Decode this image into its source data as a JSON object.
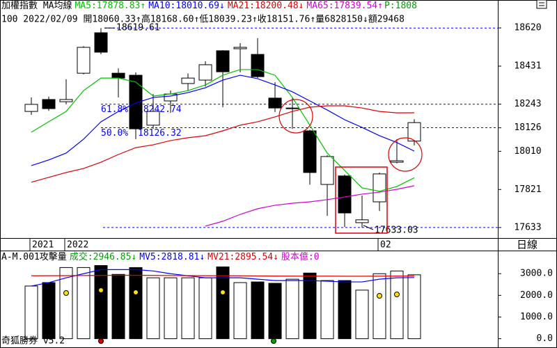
{
  "chart_data": [
    {
      "type": "candlestick",
      "title": "加權指數 MA均線",
      "info": "100 2022/02/09 開18060.33↑高18168.60↑低18039.23↑收18151.76↑量6828150↓額29468",
      "extra_label": "P:1808",
      "period": "日線",
      "categories": [
        "2021",
        null,
        "2022",
        null,
        null,
        null,
        null,
        null,
        null,
        null,
        null,
        null,
        null,
        null,
        null,
        null,
        null,
        null,
        null,
        null,
        "02",
        null,
        null
      ],
      "open": [
        18207,
        18266,
        18255,
        18396,
        18596,
        18396,
        18386,
        18139,
        18259,
        18345,
        18362,
        18507,
        18517,
        18489,
        18273,
        18221,
        18111,
        17846,
        17888,
        17657,
        17760,
        17956,
        18060.33
      ],
      "high": [
        18276,
        18280,
        18366,
        18530,
        18619.61,
        18420,
        18400,
        18293,
        18310,
        18395,
        18455,
        18510,
        18545,
        18569,
        18352,
        18276,
        18116,
        17990,
        17895,
        17791,
        17905,
        18070,
        18168.6
      ],
      "low": [
        18190,
        18210,
        18242,
        18390,
        18490,
        18276,
        18070,
        18121,
        18200,
        18310,
        18330,
        18228,
        18400,
        18372,
        18204,
        18121,
        17845,
        17691,
        17636,
        17633.03,
        17715,
        17950,
        18039.23
      ],
      "close": [
        18242,
        18221,
        18266,
        18524,
        18500,
        18372,
        18121,
        18207,
        18293,
        18372,
        18438,
        18403,
        18524,
        18379,
        18224,
        18224,
        17905,
        17984,
        17705,
        17671,
        17898,
        17963,
        18151.76
      ],
      "up_color": "#ffffff",
      "down_color": "#000000",
      "ylim": [
        17581,
        18758
      ],
      "yticks": [
        18620,
        18431,
        18243,
        18126,
        18010,
        17821,
        17633
      ],
      "series": [
        {
          "name": "MA5:17878.83↑",
          "color": "#00c000",
          "values": [
            18104,
            18156,
            18207,
            18310,
            18372,
            18372,
            18352,
            18283,
            18293,
            18310,
            18338,
            18386,
            18414,
            18414,
            18386,
            18276,
            18139,
            18001,
            17915,
            17829,
            17812,
            17836,
            17878.83
          ]
        },
        {
          "name": "MA10:18010.69↓",
          "color": "#0000ff",
          "values": [
            17939,
            17967,
            18001,
            18070,
            18156,
            18207,
            18249,
            18276,
            18283,
            18300,
            18324,
            18362,
            18386,
            18369,
            18338,
            18304,
            18259,
            18214,
            18166,
            18128,
            18087,
            18053,
            18010.69
          ]
        },
        {
          "name": "MA21:18200.48↓",
          "color": "#e00000",
          "values": [
            17857,
            17881,
            17905,
            17925,
            17956,
            17994,
            18028,
            18042,
            18063,
            18077,
            18087,
            18111,
            18139,
            18156,
            18180,
            18207,
            18228,
            18235,
            18235,
            18224,
            18207,
            18200,
            18200.48
          ]
        },
        {
          "name": "MA65:17839.54↑",
          "color": "#d000d0",
          "values": [
            null,
            null,
            null,
            null,
            null,
            null,
            null,
            null,
            null,
            null,
            17640,
            17664,
            17698,
            17726,
            17743,
            17753,
            17760,
            17771,
            17784,
            17798,
            17808,
            17822,
            17839.54
          ]
        }
      ],
      "fib_levels": [
        {
          "label": "61.8%",
          "value": 18242.74
        },
        {
          "label": "50.0%",
          "value": 18126.32
        }
      ]
    },
    {
      "type": "bar",
      "title": "A-M.001攻擊量",
      "capital_label": "股本億:0",
      "ylim": [
        -300,
        4000
      ],
      "yticks": [
        {
          "value": 3000,
          "label": "3000.0"
        },
        {
          "value": 2000,
          "label": "2000.0"
        },
        {
          "value": 1000,
          "label": "1000.0"
        },
        {
          "value": 0,
          "label": "0.0"
        }
      ],
      "series": [
        {
          "name": "成交:2946.85↓",
          "kind": "bar",
          "color": "#00a000",
          "values": [
            2429,
            2587,
            3281,
            3281,
            3375,
            2965,
            3281,
            2808,
            2808,
            2808,
            2808,
            3312,
            2587,
            2618,
            2555,
            2744,
            3028,
            2681,
            2681,
            2240,
            2997,
            3123,
            2946.85
          ]
        },
        {
          "name": "MV5:2818.81↓",
          "kind": "line",
          "color": "#0000ff",
          "values": [
            2429,
            2587,
            2808,
            2997,
            3186,
            3186,
            3186,
            3123,
            2997,
            2902,
            2808,
            2808,
            2808,
            2744,
            2681,
            2681,
            2681,
            2650,
            2618,
            2618,
            2744,
            2808,
            2818.81
          ]
        },
        {
          "name": "MV21:2895.54↓",
          "kind": "line",
          "color": "#e00000",
          "values": [
            2900,
            2905,
            2910,
            2915,
            2920,
            2925,
            2925,
            2920,
            2915,
            2910,
            2905,
            2905,
            2900,
            2895,
            2890,
            2885,
            2885,
            2885,
            2880,
            2880,
            2885,
            2890,
            2895.54
          ]
        }
      ]
    }
  ],
  "footer": "奇狐勝券 v5.2"
}
